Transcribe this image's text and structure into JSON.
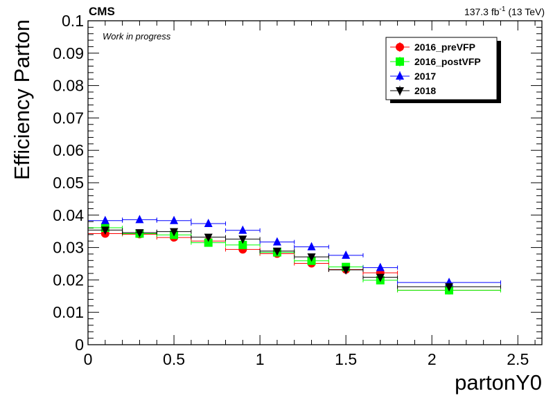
{
  "header": {
    "experiment": "CMS",
    "lumi_value": "137.3 fb",
    "lumi_exp": "-1",
    "lumi_energy": " (13 TeV)",
    "status": "Work in progress"
  },
  "chart_data": {
    "type": "scatter",
    "title": "",
    "xlabel": "partonY0",
    "ylabel": "Efficiency Parton",
    "xlim": [
      0,
      2.64
    ],
    "ylim": [
      0,
      0.1
    ],
    "grid": false,
    "legend_position": "top-right",
    "x_ticks": [
      0,
      0.5,
      1,
      1.5,
      2,
      2.5
    ],
    "x_tick_labels": [
      "0",
      "0.5",
      "1",
      "1.5",
      "2",
      "2.5"
    ],
    "y_ticks": [
      0,
      0.01,
      0.02,
      0.03,
      0.04,
      0.05,
      0.06,
      0.07,
      0.08,
      0.09,
      0.1
    ],
    "y_tick_labels": [
      "0",
      "0.01",
      "0.02",
      "0.03",
      "0.04",
      "0.05",
      "0.06",
      "0.07",
      "0.08",
      "0.09",
      "0.1"
    ],
    "bins": [
      [
        0,
        0.2
      ],
      [
        0.2,
        0.4
      ],
      [
        0.4,
        0.6
      ],
      [
        0.6,
        0.8
      ],
      [
        0.8,
        1.0
      ],
      [
        1.0,
        1.2
      ],
      [
        1.2,
        1.4
      ],
      [
        1.4,
        1.6
      ],
      [
        1.6,
        1.8
      ],
      [
        1.8,
        2.4
      ]
    ],
    "x": [
      0.1,
      0.3,
      0.5,
      0.7,
      0.9,
      1.1,
      1.3,
      1.5,
      1.7,
      2.1
    ],
    "series": [
      {
        "name": "2016_preVFP",
        "marker": "circle",
        "color": "#ff0000",
        "values": [
          0.0343,
          0.0341,
          0.0331,
          0.032,
          0.0294,
          0.0281,
          0.0251,
          0.0232,
          0.0222,
          0.0168
        ]
      },
      {
        "name": "2016_postVFP",
        "marker": "square",
        "color": "#00ff00",
        "values": [
          0.0361,
          0.0343,
          0.0339,
          0.0315,
          0.0308,
          0.0285,
          0.0259,
          0.024,
          0.0199,
          0.0168
        ]
      },
      {
        "name": "2017",
        "marker": "triangle-up",
        "color": "#0000ff",
        "values": [
          0.0383,
          0.0386,
          0.0383,
          0.0374,
          0.0353,
          0.0317,
          0.0302,
          0.0276,
          0.0238,
          0.0192
        ]
      },
      {
        "name": "2018",
        "marker": "triangle-down",
        "color": "#000000",
        "values": [
          0.0354,
          0.0346,
          0.0349,
          0.0332,
          0.0326,
          0.0289,
          0.0271,
          0.0231,
          0.0208,
          0.0179
        ]
      }
    ]
  }
}
